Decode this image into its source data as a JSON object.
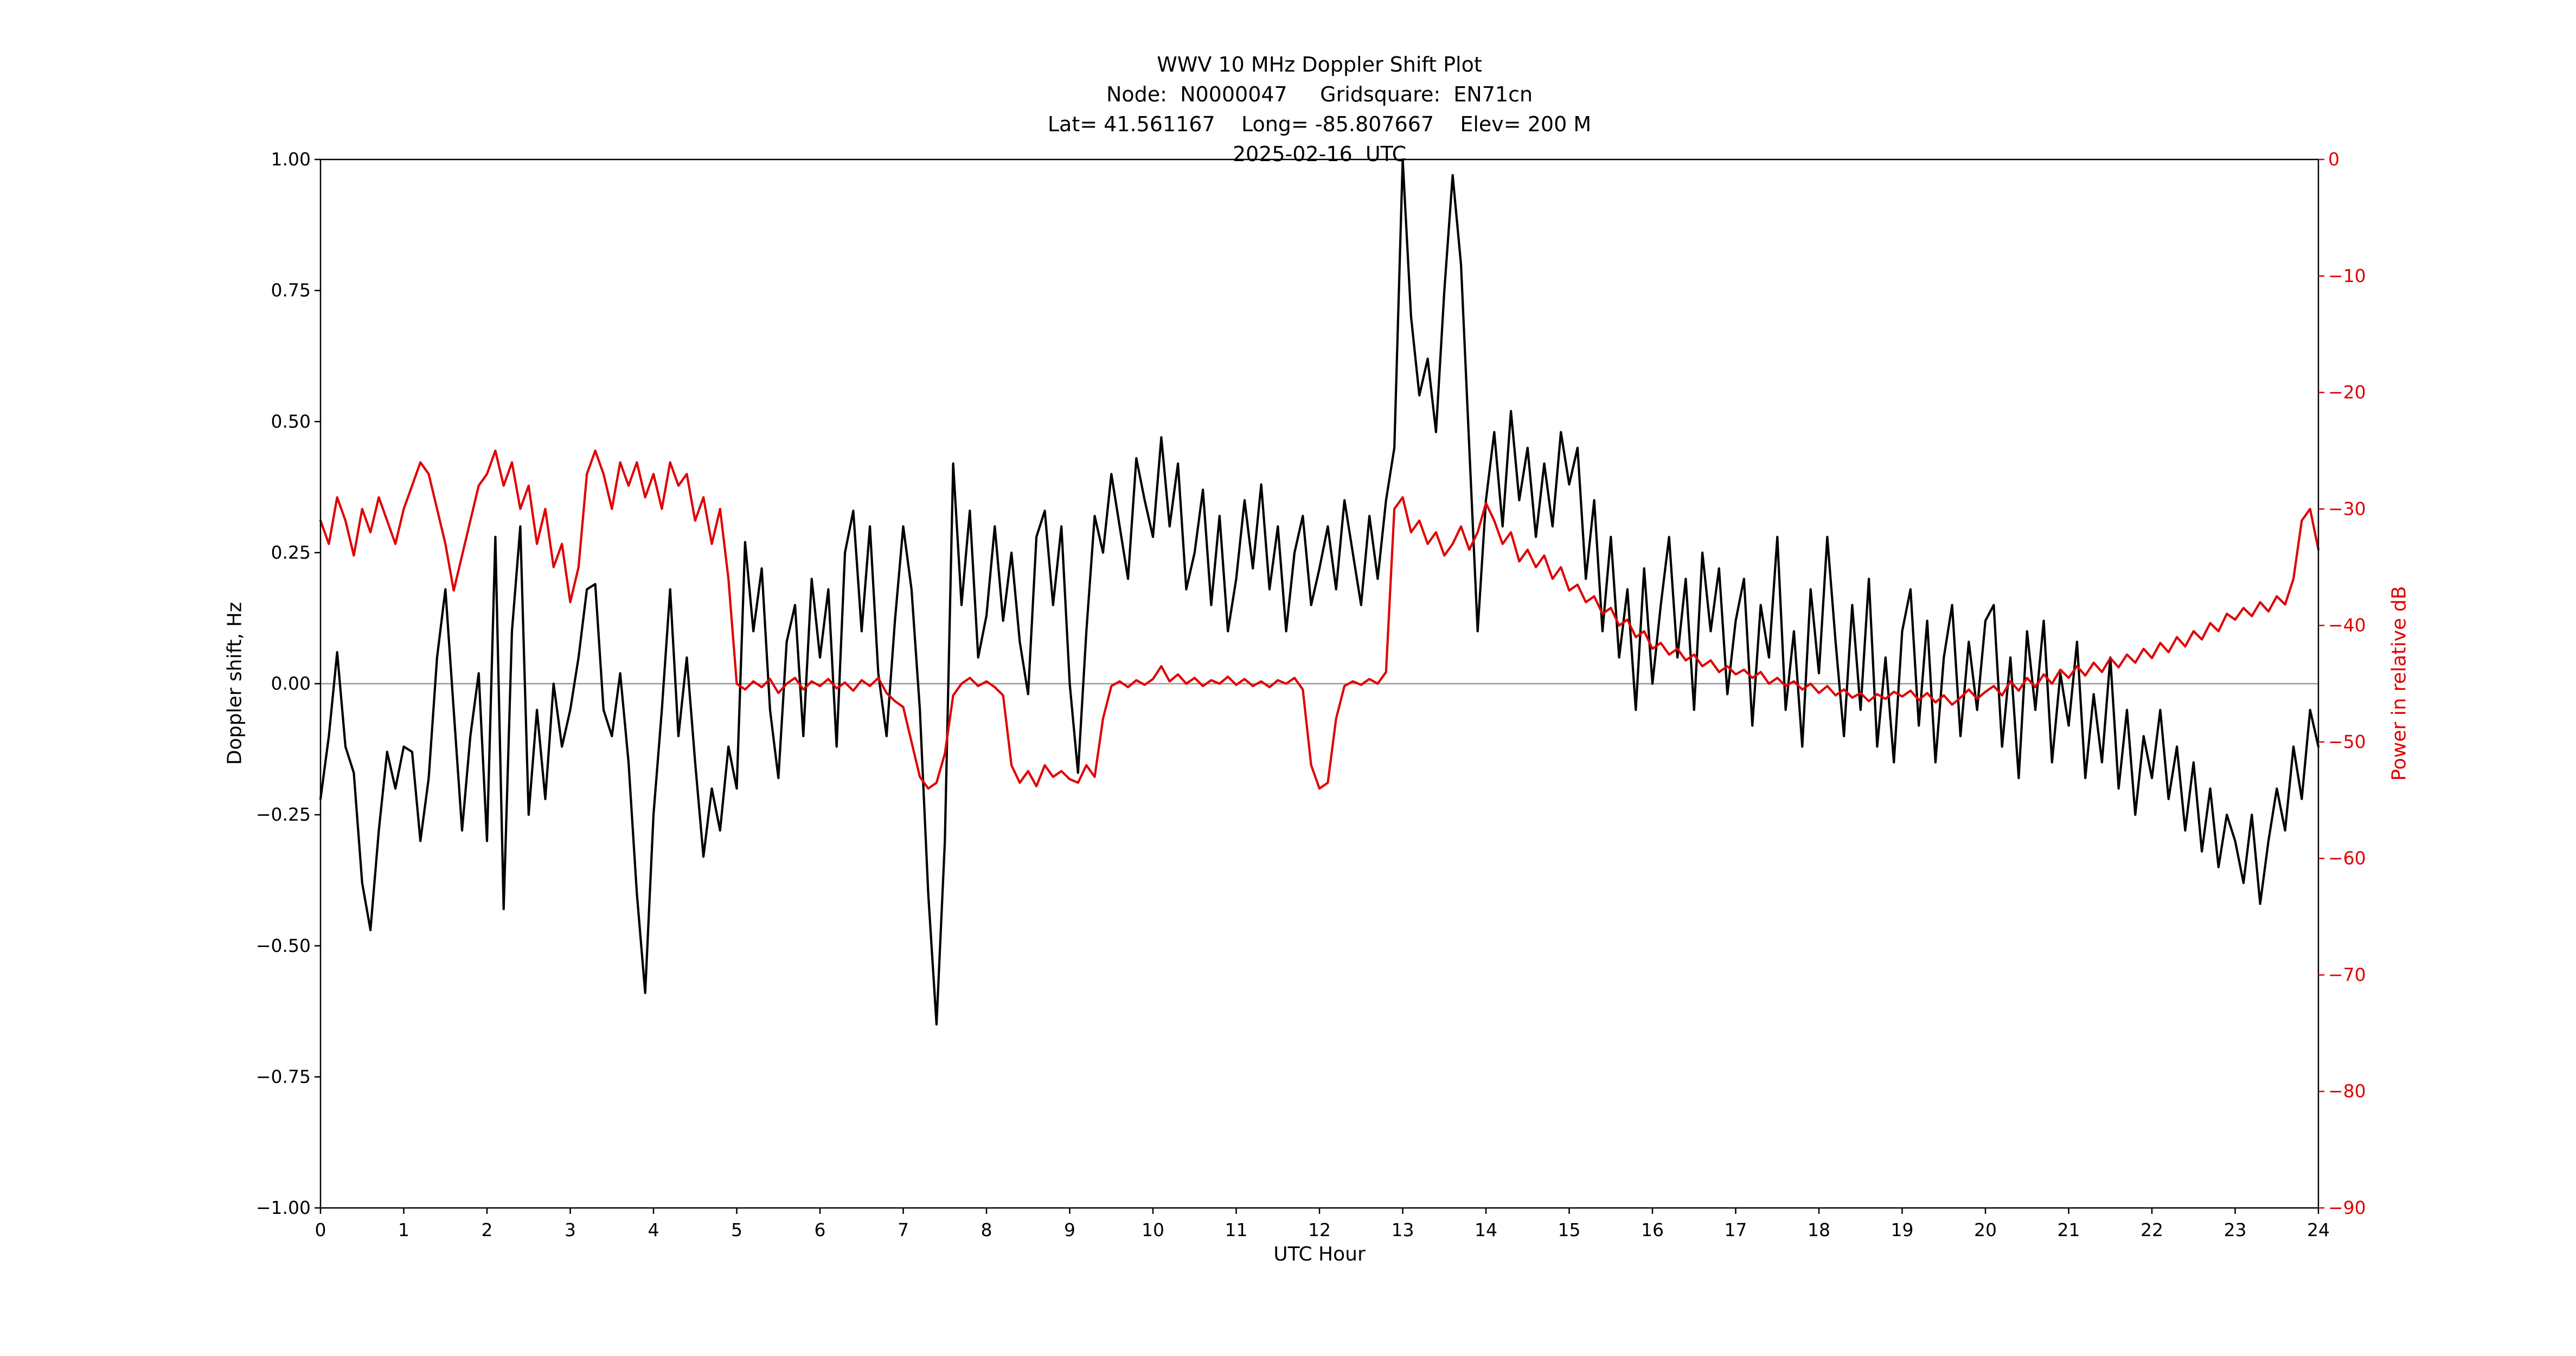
{
  "figure": {
    "title": "WWV 10 MHz Doppler Shift Plot",
    "subtitle1": "Node:  N0000047     Gridsquare:  EN71cn",
    "subtitle2": "Lat= 41.561167    Long= -85.807667    Elev= 200 M",
    "subtitle3": "2025-02-16  UTC"
  },
  "chart_data": {
    "type": "line",
    "title": "WWV 10 MHz Doppler Shift Plot",
    "subtitle_lines": [
      "Node:  N0000047     Gridsquare:  EN71cn",
      "Lat= 41.561167    Long= -85.807667    Elev= 200 M",
      "2025-02-16  UTC"
    ],
    "xlabel": "UTC Hour",
    "ylabel_left": "Doppler shift, Hz",
    "ylabel_right": "Power in relative dB",
    "xlim": [
      0,
      24
    ],
    "ylim_left": [
      -1.0,
      1.0
    ],
    "ylim_right": [
      -90,
      0
    ],
    "grid": "single gray horizontal line at Doppler shift = 0",
    "legend": "none",
    "x_tick_values": [
      0,
      1,
      2,
      3,
      4,
      5,
      6,
      7,
      8,
      9,
      10,
      11,
      12,
      13,
      14,
      15,
      16,
      17,
      18,
      19,
      20,
      21,
      22,
      23,
      24
    ],
    "x_tick_labels": [
      "0",
      "1",
      "2",
      "3",
      "4",
      "5",
      "6",
      "7",
      "8",
      "9",
      "10",
      "11",
      "12",
      "13",
      "14",
      "15",
      "16",
      "17",
      "18",
      "19",
      "20",
      "21",
      "22",
      "23",
      "24"
    ],
    "y_tick_values_left": [
      1.0,
      0.75,
      0.5,
      0.25,
      0.0,
      -0.25,
      -0.5,
      -0.75,
      -1.0
    ],
    "y_tick_labels_left": [
      "1.00",
      "0.75",
      "0.50",
      "0.25",
      "0.00",
      "−0.25",
      "−0.50",
      "−0.75",
      "−1.00"
    ],
    "y_tick_values_right": [
      0,
      -10,
      -20,
      -30,
      -40,
      -50,
      -60,
      -70,
      -80,
      -90
    ],
    "y_tick_labels_right": [
      "0",
      "−10",
      "−20",
      "−30",
      "−40",
      "−50",
      "−60",
      "−70",
      "−80",
      "−90"
    ],
    "colors": {
      "doppler": "#000000",
      "power": "#e00000",
      "zero_line": "#9a9a9a",
      "frame": "#000000"
    },
    "series": [
      {
        "name": "Doppler shift (Hz)",
        "dom_name": "doppler-series-line",
        "axis": "left",
        "color_key": "doppler",
        "x_start": 0,
        "x_step": 0.1,
        "values": [
          -0.22,
          -0.1,
          0.06,
          -0.12,
          -0.17,
          -0.38,
          -0.47,
          -0.28,
          -0.13,
          -0.2,
          -0.12,
          -0.13,
          -0.3,
          -0.18,
          0.05,
          0.18,
          -0.05,
          -0.28,
          -0.1,
          0.02,
          -0.3,
          0.28,
          -0.43,
          0.1,
          0.3,
          -0.25,
          -0.05,
          -0.22,
          0.0,
          -0.12,
          -0.05,
          0.05,
          0.18,
          0.19,
          -0.05,
          -0.1,
          0.02,
          -0.15,
          -0.4,
          -0.59,
          -0.25,
          -0.05,
          0.18,
          -0.1,
          0.05,
          -0.15,
          -0.33,
          -0.2,
          -0.28,
          -0.12,
          -0.2,
          0.27,
          0.1,
          0.22,
          -0.05,
          -0.18,
          0.08,
          0.15,
          -0.1,
          0.2,
          0.05,
          0.18,
          -0.12,
          0.25,
          0.33,
          0.1,
          0.3,
          0.02,
          -0.1,
          0.12,
          0.3,
          0.18,
          -0.05,
          -0.4,
          -0.65,
          -0.3,
          0.42,
          0.15,
          0.33,
          0.05,
          0.13,
          0.3,
          0.12,
          0.25,
          0.08,
          -0.02,
          0.28,
          0.33,
          0.15,
          0.3,
          0.0,
          -0.17,
          0.1,
          0.32,
          0.25,
          0.4,
          0.3,
          0.2,
          0.43,
          0.35,
          0.28,
          0.47,
          0.3,
          0.42,
          0.18,
          0.25,
          0.37,
          0.15,
          0.32,
          0.1,
          0.2,
          0.35,
          0.22,
          0.38,
          0.18,
          0.3,
          0.1,
          0.25,
          0.32,
          0.15,
          0.22,
          0.3,
          0.18,
          0.35,
          0.25,
          0.15,
          0.32,
          0.2,
          0.35,
          0.45,
          1.0,
          0.7,
          0.55,
          0.62,
          0.48,
          0.75,
          0.97,
          0.8,
          0.45,
          0.1,
          0.35,
          0.48,
          0.3,
          0.52,
          0.35,
          0.45,
          0.28,
          0.42,
          0.3,
          0.48,
          0.38,
          0.45,
          0.2,
          0.35,
          0.1,
          0.28,
          0.05,
          0.18,
          -0.05,
          0.22,
          0.0,
          0.15,
          0.28,
          0.05,
          0.2,
          -0.05,
          0.25,
          0.1,
          0.22,
          -0.02,
          0.12,
          0.2,
          -0.08,
          0.15,
          0.05,
          0.28,
          -0.05,
          0.1,
          -0.12,
          0.18,
          0.02,
          0.28,
          0.08,
          -0.1,
          0.15,
          -0.05,
          0.2,
          -0.12,
          0.05,
          -0.15,
          0.1,
          0.18,
          -0.08,
          0.12,
          -0.15,
          0.05,
          0.15,
          -0.1,
          0.08,
          -0.05,
          0.12,
          0.15,
          -0.12,
          0.05,
          -0.18,
          0.1,
          -0.05,
          0.12,
          -0.15,
          0.02,
          -0.08,
          0.08,
          -0.18,
          -0.02,
          -0.15,
          0.05,
          -0.2,
          -0.05,
          -0.25,
          -0.1,
          -0.18,
          -0.05,
          -0.22,
          -0.12,
          -0.28,
          -0.15,
          -0.32,
          -0.2,
          -0.35,
          -0.25,
          -0.3,
          -0.38,
          -0.25,
          -0.42,
          -0.3,
          -0.2,
          -0.28,
          -0.12,
          -0.22,
          -0.05,
          -0.12
        ]
      },
      {
        "name": "Power in relative dB",
        "dom_name": "power-series-line",
        "axis": "right",
        "color_key": "power",
        "x_start": 0,
        "x_step": 0.1,
        "values": [
          -31,
          -33,
          -29,
          -31,
          -34,
          -30,
          -32,
          -29,
          -31,
          -33,
          -30,
          -28,
          -26,
          -27,
          -30,
          -33,
          -37,
          -34,
          -31,
          -28,
          -27,
          -25,
          -28,
          -26,
          -30,
          -28,
          -33,
          -30,
          -35,
          -33,
          -38,
          -35,
          -27,
          -25,
          -27,
          -30,
          -26,
          -28,
          -26,
          -29,
          -27,
          -30,
          -26,
          -28,
          -27,
          -31,
          -29,
          -33,
          -30,
          -36,
          -45,
          -45.5,
          -44.8,
          -45.3,
          -44.6,
          -45.8,
          -45.0,
          -44.5,
          -45.5,
          -44.8,
          -45.2,
          -44.6,
          -45.4,
          -44.9,
          -45.6,
          -44.7,
          -45.2,
          -44.5,
          -45.8,
          -46.5,
          -47,
          -50,
          -53,
          -54,
          -53.5,
          -51,
          -46,
          -45,
          -44.5,
          -45.2,
          -44.8,
          -45.3,
          -46,
          -52,
          -53.5,
          -52.5,
          -53.8,
          -52,
          -53,
          -52.5,
          -53.2,
          -53.5,
          -52,
          -53,
          -48,
          -45.2,
          -44.8,
          -45.3,
          -44.7,
          -45.1,
          -44.6,
          -43.5,
          -44.8,
          -44.2,
          -45.0,
          -44.5,
          -45.2,
          -44.7,
          -45.0,
          -44.4,
          -45.1,
          -44.6,
          -45.2,
          -44.8,
          -45.3,
          -44.7,
          -45.0,
          -44.5,
          -45.5,
          -52,
          -54,
          -53.5,
          -48,
          -45.2,
          -44.8,
          -45.1,
          -44.6,
          -45.0,
          -44.0,
          -30,
          -29,
          -32,
          -31,
          -33,
          -32,
          -34,
          -33,
          -31.5,
          -33.5,
          -32,
          -29.5,
          -31,
          -33,
          -32,
          -34.5,
          -33.5,
          -35,
          -34,
          -36,
          -35,
          -37,
          -36.5,
          -38,
          -37.5,
          -39,
          -38.5,
          -40,
          -39.5,
          -41,
          -40.5,
          -42,
          -41.5,
          -42.5,
          -42,
          -43,
          -42.5,
          -43.5,
          -43,
          -44,
          -43.5,
          -44.2,
          -43.8,
          -44.5,
          -44,
          -45,
          -44.5,
          -45.2,
          -44.8,
          -45.5,
          -45,
          -45.8,
          -45.2,
          -46,
          -45.5,
          -46.2,
          -45.8,
          -46.5,
          -45.9,
          -46.3,
          -45.7,
          -46.1,
          -45.6,
          -46.4,
          -45.8,
          -46.6,
          -46,
          -46.8,
          -46.2,
          -45.5,
          -46.3,
          -45.7,
          -45.2,
          -46,
          -44.8,
          -45.6,
          -44.5,
          -45.3,
          -44.2,
          -45,
          -43.8,
          -44.5,
          -43.5,
          -44.3,
          -43.2,
          -44,
          -42.8,
          -43.6,
          -42.5,
          -43.2,
          -42,
          -42.8,
          -41.5,
          -42.3,
          -41,
          -41.8,
          -40.5,
          -41.2,
          -39.8,
          -40.5,
          -39,
          -39.5,
          -38.5,
          -39.2,
          -38,
          -38.8,
          -37.5,
          -38.2,
          -36,
          -31,
          -30,
          -33.5
        ]
      }
    ]
  }
}
